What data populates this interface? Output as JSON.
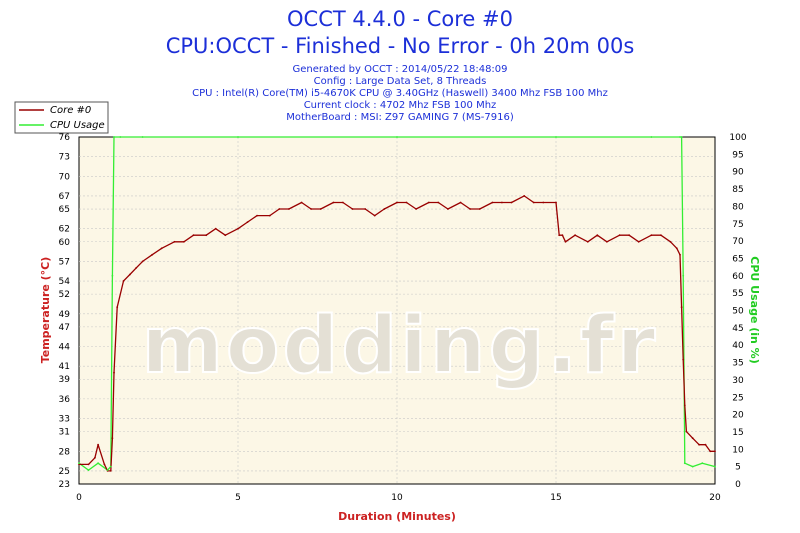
{
  "header": {
    "title": "OCCT 4.4.0 - Core #0",
    "subtitle": "CPU:OCCT - Finished - No Error - 0h 20m 00s",
    "info": [
      "Generated by OCCT : 2014/05/22 18:48:09",
      "Config : Large Data Set, 8 Threads",
      "CPU : Intel(R) Core(TM) i5-4670K CPU @ 3.40GHz (Haswell) 3400 Mhz FSB 100 Mhz",
      "Current clock : 4702 Mhz FSB 100 Mhz",
      "MotherBoard : MSI: Z97 GAMING 7 (MS-7916)"
    ]
  },
  "watermark": "modding.fr",
  "colors": {
    "temperature": "#990000",
    "cpu_usage": "#33ee33",
    "plot_bg": "#fcf7e6",
    "grid": "#c8c8c8",
    "title": "#1c2fd8"
  },
  "chart_data": {
    "type": "line",
    "title": "OCCT 4.4.0 - Core #0",
    "xlabel": "Duration (Minutes)",
    "ylabel": "Temperature (°C)",
    "y2label": "CPU Usage (in %)",
    "xlim": [
      0,
      20
    ],
    "ylim": [
      23,
      76
    ],
    "y2lim": [
      0,
      100
    ],
    "x_ticks": [
      "0",
      "5",
      "10",
      "15",
      "20"
    ],
    "y_ticks": [
      "23",
      "25",
      "28",
      "31",
      "33",
      "36",
      "39",
      "41",
      "44",
      "47",
      "49",
      "52",
      "54",
      "57",
      "60",
      "62",
      "65",
      "67",
      "70",
      "73",
      "76"
    ],
    "y2_ticks": [
      "0",
      "5",
      "10",
      "15",
      "20",
      "25",
      "30",
      "35",
      "40",
      "45",
      "50",
      "55",
      "60",
      "65",
      "70",
      "75",
      "80",
      "85",
      "90",
      "95",
      "100"
    ],
    "grid": true,
    "legend_position": "top-left",
    "series": [
      {
        "name": "Core #0",
        "axis": "left",
        "x": [
          0,
          0.3,
          0.5,
          0.6,
          0.8,
          0.9,
          1.0,
          1.05,
          1.1,
          1.2,
          1.4,
          1.6,
          1.8,
          2.0,
          2.3,
          2.6,
          3.0,
          3.3,
          3.6,
          4.0,
          4.3,
          4.6,
          5.0,
          5.3,
          5.6,
          6.0,
          6.3,
          6.6,
          7.0,
          7.3,
          7.6,
          8.0,
          8.3,
          8.6,
          9.0,
          9.3,
          9.6,
          10.0,
          10.3,
          10.6,
          11.0,
          11.3,
          11.6,
          12.0,
          12.3,
          12.6,
          13.0,
          13.3,
          13.6,
          14.0,
          14.3,
          14.6,
          15.0,
          15.1,
          15.2,
          15.3,
          15.6,
          16.0,
          16.3,
          16.6,
          17.0,
          17.3,
          17.6,
          18.0,
          18.3,
          18.6,
          18.8,
          18.9,
          18.95,
          19.0,
          19.05,
          19.1,
          19.3,
          19.5,
          19.7,
          19.85,
          20.0
        ],
        "values": [
          26,
          26,
          27,
          29,
          26,
          25,
          25,
          30,
          40,
          50,
          54,
          55,
          56,
          57,
          58,
          59,
          60,
          60,
          61,
          61,
          62,
          61,
          62,
          63,
          64,
          64,
          65,
          65,
          66,
          65,
          65,
          66,
          66,
          65,
          65,
          64,
          65,
          66,
          66,
          65,
          66,
          66,
          65,
          66,
          65,
          65,
          66,
          66,
          66,
          67,
          66,
          66,
          66,
          61,
          61,
          60,
          61,
          60,
          61,
          60,
          61,
          61,
          60,
          61,
          61,
          60,
          59,
          58,
          50,
          42,
          35,
          31,
          30,
          29,
          29,
          28,
          28
        ]
      },
      {
        "name": "CPU Usage",
        "axis": "right",
        "x": [
          0,
          0.3,
          0.6,
          0.9,
          1.0,
          1.05,
          1.1,
          1.3,
          2.0,
          5.0,
          10.0,
          15.0,
          18.0,
          18.9,
          18.95,
          19.0,
          19.05,
          19.3,
          19.6,
          20.0
        ],
        "values": [
          6,
          4,
          6,
          4,
          5,
          60,
          100,
          100,
          100,
          100,
          100,
          100,
          100,
          100,
          100,
          60,
          6,
          5,
          6,
          5
        ]
      }
    ]
  }
}
